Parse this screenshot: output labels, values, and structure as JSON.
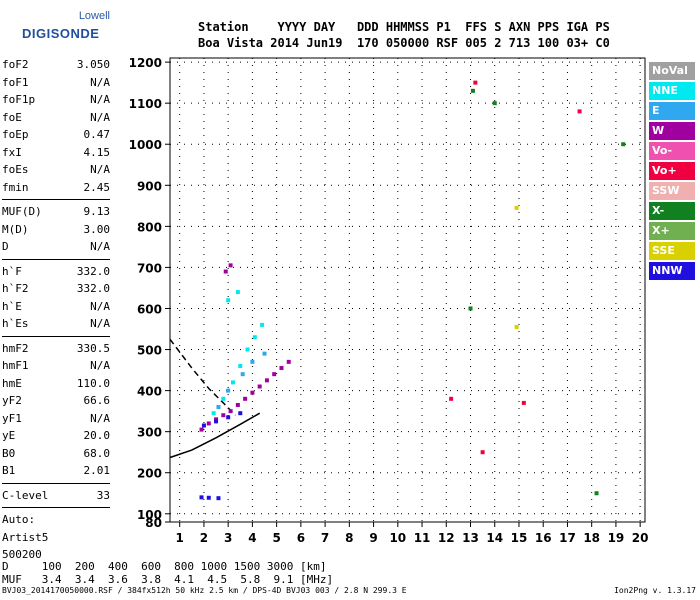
{
  "logo": {
    "line1": "Lowell",
    "line2": "DIGISONDE"
  },
  "header": {
    "row1": "Station    YYYY DAY   DDD HHMMSS P1  FFS S AXN PPS IGA PS",
    "row2": "Boa Vista 2014 Jun19  170 050000 RSF 005 2 713 100 03+ C0"
  },
  "params": [
    {
      "label": "foF2",
      "value": "3.050"
    },
    {
      "label": "foF1",
      "value": "N/A"
    },
    {
      "label": "foF1p",
      "value": "N/A"
    },
    {
      "label": "foE",
      "value": "N/A"
    },
    {
      "label": "foEp",
      "value": "0.47"
    },
    {
      "label": "fxI",
      "value": "4.15"
    },
    {
      "label": "foEs",
      "value": "N/A"
    },
    {
      "label": "fmin",
      "value": "2.45"
    },
    {
      "sep": true
    },
    {
      "label": "MUF(D)",
      "value": "9.13"
    },
    {
      "label": "M(D)",
      "value": "3.00"
    },
    {
      "label": "D",
      "value": "N/A"
    },
    {
      "sep": true
    },
    {
      "label": "h`F",
      "value": "332.0"
    },
    {
      "label": "h`F2",
      "value": "332.0"
    },
    {
      "label": "h`E",
      "value": "N/A"
    },
    {
      "label": "h`Es",
      "value": "N/A"
    },
    {
      "sep": true
    },
    {
      "label": "hmF2",
      "value": "330.5"
    },
    {
      "label": "hmF1",
      "value": "N/A"
    },
    {
      "label": "hmE",
      "value": "110.0"
    },
    {
      "label": "yF2",
      "value": "66.6"
    },
    {
      "label": "yF1",
      "value": "N/A"
    },
    {
      "label": "yE",
      "value": "20.0"
    },
    {
      "label": "B0",
      "value": "68.0"
    },
    {
      "label": "B1",
      "value": "2.01"
    },
    {
      "sep": true
    },
    {
      "label": "C-level",
      "value": "33"
    },
    {
      "sep": true
    },
    {
      "label": "Auto:",
      "value": ""
    },
    {
      "label": "Artist5",
      "value": ""
    },
    {
      "label": "500200",
      "value": ""
    }
  ],
  "legend": [
    {
      "name": "NoVal",
      "color": "#a0a0a0"
    },
    {
      "name": "NNE",
      "color": "#00e8f0"
    },
    {
      "name": "E",
      "color": "#30a8f0"
    },
    {
      "name": "W",
      "color": "#a000a0"
    },
    {
      "name": "Vo-",
      "color": "#f050b0"
    },
    {
      "name": "Vo+",
      "color": "#f00040"
    },
    {
      "name": "SSW",
      "color": "#f0b0b0"
    },
    {
      "name": "X-",
      "color": "#108020"
    },
    {
      "name": "X+",
      "color": "#70b050"
    },
    {
      "name": "SSE",
      "color": "#d8d000"
    },
    {
      "name": "NNW",
      "color": "#2010e0"
    }
  ],
  "footer": {
    "d_row": "D     100  200  400  600  800 1000 1500 3000 [km]",
    "muf_row": "MUF   3.4  3.4  3.6  3.8  4.1  4.5  5.8  9.1 [MHz]",
    "file_info": "BVJ03_2014170050000.RSF / 384fx512h 50 kHz 2.5 km / DPS-4D BVJ03 003 / 2.8 N 299.3 E",
    "version": "Ion2Png v. 1.3.17"
  },
  "chart_data": {
    "type": "scatter",
    "xlim": [
      0.6,
      20.2
    ],
    "ylim": [
      80,
      1210
    ],
    "x_ticks": [
      1,
      2,
      3,
      4,
      5,
      6,
      7,
      8,
      9,
      10,
      11,
      12,
      13,
      14,
      15,
      16,
      17,
      18,
      19,
      20
    ],
    "y_ticks": [
      80,
      100,
      200,
      300,
      400,
      500,
      600,
      700,
      800,
      900,
      1000,
      1100,
      1200
    ],
    "grid": true,
    "series": [
      {
        "name": "W",
        "color": "#a000a0",
        "points": [
          [
            1.9,
            305
          ],
          [
            2.2,
            320
          ],
          [
            2.5,
            330
          ],
          [
            2.8,
            340
          ],
          [
            3.1,
            350
          ],
          [
            3.4,
            365
          ],
          [
            3.7,
            380
          ],
          [
            4.0,
            395
          ],
          [
            4.3,
            410
          ],
          [
            4.6,
            425
          ],
          [
            4.9,
            440
          ],
          [
            5.2,
            455
          ],
          [
            5.5,
            470
          ],
          [
            2.9,
            690
          ],
          [
            3.1,
            705
          ]
        ]
      },
      {
        "name": "NNE",
        "color": "#00e8f0",
        "points": [
          [
            2.4,
            345
          ],
          [
            2.8,
            380
          ],
          [
            3.2,
            420
          ],
          [
            3.5,
            460
          ],
          [
            3.8,
            500
          ],
          [
            4.1,
            530
          ],
          [
            4.4,
            560
          ],
          [
            3.0,
            620
          ],
          [
            3.4,
            640
          ]
        ]
      },
      {
        "name": "E",
        "color": "#30a8f0",
        "points": [
          [
            2.6,
            360
          ],
          [
            3.0,
            400
          ],
          [
            3.6,
            440
          ],
          [
            4.0,
            470
          ],
          [
            4.5,
            490
          ]
        ]
      },
      {
        "name": "NNW",
        "color": "#2010e0",
        "points": [
          [
            2.0,
            315
          ],
          [
            2.5,
            325
          ],
          [
            3.0,
            335
          ],
          [
            3.5,
            345
          ],
          [
            1.9,
            140
          ],
          [
            2.2,
            139
          ],
          [
            2.6,
            138
          ]
        ]
      },
      {
        "name": "SSE",
        "color": "#d8d000",
        "points": [
          [
            14.9,
            845
          ],
          [
            14.9,
            555
          ]
        ]
      },
      {
        "name": "Vo+",
        "color": "#f00040",
        "points": [
          [
            13.2,
            1150
          ],
          [
            13.5,
            250
          ],
          [
            15.2,
            370
          ],
          [
            17.5,
            1080
          ],
          [
            12.2,
            380
          ]
        ]
      },
      {
        "name": "X-",
        "color": "#108020",
        "points": [
          [
            13.1,
            1130
          ],
          [
            13.0,
            600
          ],
          [
            19.3,
            1000
          ],
          [
            18.2,
            150
          ],
          [
            14.0,
            1100
          ]
        ]
      }
    ],
    "curves": {
      "solid": [
        [
          0.6,
          237
        ],
        [
          1.5,
          255
        ],
        [
          2.5,
          285
        ],
        [
          3.5,
          318
        ],
        [
          4.3,
          345
        ]
      ],
      "dashed": [
        [
          0.6,
          525
        ],
        [
          1.5,
          455
        ],
        [
          2.2,
          405
        ],
        [
          2.8,
          370
        ],
        [
          3.3,
          340
        ]
      ]
    }
  }
}
